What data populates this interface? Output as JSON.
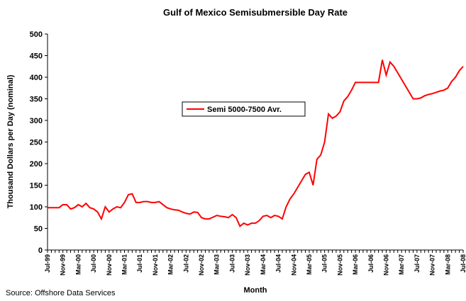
{
  "chart_data": {
    "type": "line",
    "title": "Gulf of Mexico Semisubmersible Day Rate",
    "y_label": "Thousand Dollars per Day (nominal)",
    "x_label": "Month",
    "source": "Source: Offshore Data Services",
    "categories": [
      "Jul-99",
      null,
      null,
      null,
      "Nov-99",
      null,
      null,
      null,
      "Mar-00",
      null,
      null,
      null,
      "Jul-00",
      null,
      null,
      null,
      "Nov-00",
      null,
      null,
      null,
      "Mar-01",
      null,
      null,
      null,
      "Jul-01",
      null,
      null,
      null,
      "Nov-01",
      null,
      null,
      null,
      "Mar-02",
      null,
      null,
      null,
      "Jul-02",
      null,
      null,
      null,
      "Nov-02",
      null,
      null,
      null,
      "Mar-03",
      null,
      null,
      null,
      "Jul-03",
      null,
      null,
      null,
      "Nov-03",
      null,
      null,
      null,
      "Mar-04",
      null,
      null,
      null,
      "Jul-04",
      null,
      null,
      null,
      "Nov-04",
      null,
      null,
      null,
      "Mar-05",
      null,
      null,
      null,
      "Jul-05",
      null,
      null,
      null,
      "Nov-05",
      null,
      null,
      null,
      "Mar-06",
      null,
      null,
      null,
      "Jul-06",
      null,
      null,
      null,
      "Nov-06",
      null,
      null,
      null,
      "Mar-07",
      null,
      null,
      null,
      "Jul-07",
      null,
      null,
      null,
      "Nov-07",
      null,
      null,
      null,
      "Mar-08",
      null,
      null,
      null,
      "Jul-08"
    ],
    "series": [
      {
        "name": "Semi 5000-7500 Avr.",
        "color": "#ff0000",
        "values": [
          98,
          98,
          98,
          98,
          105,
          105,
          95,
          98,
          105,
          100,
          108,
          98,
          95,
          88,
          72,
          100,
          88,
          95,
          100,
          98,
          110,
          128,
          130,
          110,
          110,
          112,
          112,
          110,
          110,
          112,
          105,
          98,
          95,
          93,
          92,
          88,
          85,
          83,
          88,
          87,
          75,
          72,
          72,
          76,
          80,
          78,
          77,
          75,
          82,
          75,
          55,
          62,
          58,
          62,
          62,
          68,
          78,
          80,
          75,
          80,
          78,
          72,
          100,
          118,
          130,
          145,
          160,
          175,
          180,
          150,
          210,
          220,
          250,
          315,
          305,
          310,
          320,
          345,
          355,
          370,
          388,
          388,
          388,
          388,
          388,
          388,
          388,
          440,
          405,
          435,
          425,
          410,
          395,
          380,
          365,
          350,
          350,
          352,
          357,
          360,
          362,
          365,
          368,
          370,
          375,
          390,
          400,
          415,
          425
        ]
      }
    ],
    "ylim": [
      0,
      500
    ],
    "yticks": [
      0,
      50,
      100,
      150,
      200,
      250,
      300,
      350,
      400,
      450,
      500
    ],
    "grid": false
  }
}
